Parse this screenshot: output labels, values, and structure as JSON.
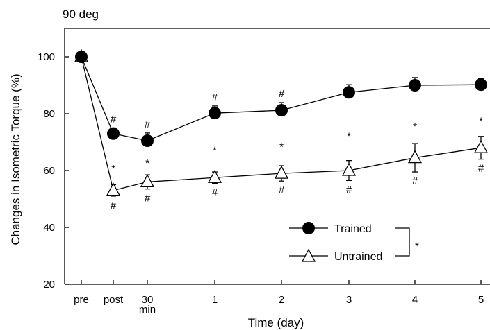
{
  "chart_data": {
    "type": "line",
    "title": "90 deg",
    "xlabel": "Time (day)",
    "ylabel": "Changes in Isometric Torque (%)",
    "ylim": [
      20,
      110
    ],
    "yticks": [
      20,
      40,
      60,
      80,
      100
    ],
    "grid": false,
    "legend_position": "bottom-right",
    "categories": [
      "pre",
      "post",
      "30 min",
      "1",
      "2",
      "3",
      "4",
      "5"
    ],
    "tick_labels": [
      [
        "pre"
      ],
      [
        "post"
      ],
      [
        "30",
        "min"
      ],
      [
        "1"
      ],
      [
        "2"
      ],
      [
        "3"
      ],
      [
        "4"
      ],
      [
        "5"
      ]
    ],
    "series": [
      {
        "name": "Trained",
        "marker": "filled-circle",
        "values": [
          100,
          73,
          70.5,
          80.2,
          81.2,
          87.5,
          90,
          90.2
        ],
        "errors": [
          0,
          2,
          2.7,
          2.5,
          2.7,
          2.7,
          2.7,
          2.2
        ],
        "annotations": [
          "",
          "#",
          "#",
          "#",
          "#",
          "",
          "",
          ""
        ]
      },
      {
        "name": "Untrained",
        "marker": "open-triangle",
        "values": [
          100,
          53,
          56,
          57.5,
          59,
          60,
          64.5,
          68
        ],
        "errors": [
          0,
          2,
          2.5,
          2,
          2.7,
          3.5,
          5,
          4
        ],
        "annotations": [
          "",
          "#",
          "#",
          "#",
          "#",
          "#",
          "#",
          "#"
        ]
      }
    ],
    "between_group_annotations": [
      "",
      "*",
      "*",
      "*",
      "*",
      "*",
      "*",
      "*"
    ],
    "legend_significance": "*",
    "colors": {
      "trained_fill": "#000000",
      "untrained_fill": "#ffffff",
      "line": "#000000"
    }
  }
}
